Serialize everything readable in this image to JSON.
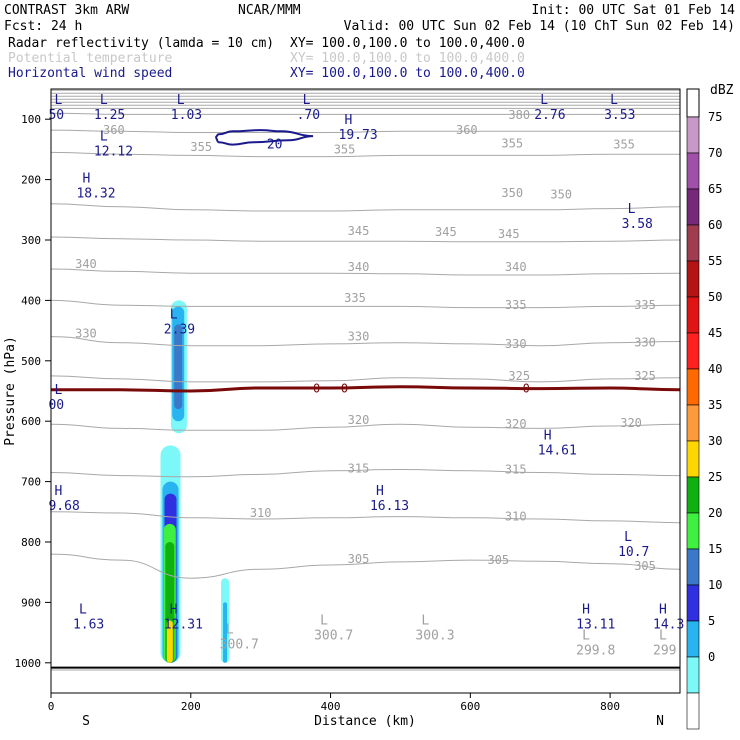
{
  "header": {
    "line1_left": "CONTRAST  3km ARW",
    "line1_center": "NCAR/MMM",
    "line1_right": "Init: 00 UTC Sat 01 Feb 14",
    "line2_left": "Fcst:   24 h",
    "line2_right": "Valid: 00 UTC Sun 02 Feb 14 (10 ChT Sun 02 Feb 14)",
    "fields": [
      {
        "name": "Radar reflectivity (lamda = 10 cm)",
        "xy": "XY= 100.0,100.0 to 100.0,400.0",
        "color": "#000000"
      },
      {
        "name": "Potential temperature",
        "xy": "XY= 100.0,100.0 to 100.0,400.0",
        "color": "#c8c8c8"
      },
      {
        "name": "Horizontal wind speed",
        "xy": "XY= 100.0,100.0 to 100.0,400.0",
        "color": "#1a1a8c"
      }
    ]
  },
  "chart_data": {
    "type": "cross-section",
    "xlabel": "Distance (km)",
    "ylabel": "Pressure (hPa)",
    "xlim": [
      0,
      900
    ],
    "ylim": [
      1050,
      50
    ],
    "x_ticks": [
      0,
      200,
      400,
      600,
      800
    ],
    "y_ticks": [
      100,
      200,
      300,
      400,
      500,
      600,
      700,
      800,
      900,
      1000
    ],
    "x_end_labels": {
      "left": "S",
      "right": "N"
    },
    "colorbar": {
      "unit": "dBZ",
      "levels": [
        {
          "label": "75",
          "color": "#c898c8"
        },
        {
          "label": "70",
          "color": "#a050a8"
        },
        {
          "label": "65",
          "color": "#782878"
        },
        {
          "label": "60",
          "color": "#a03c50"
        },
        {
          "label": "55",
          "color": "#b41414"
        },
        {
          "label": "50",
          "color": "#e01414"
        },
        {
          "label": "45",
          "color": "#ff2020"
        },
        {
          "label": "40",
          "color": "#ff6a00"
        },
        {
          "label": "35",
          "color": "#ff9a3c"
        },
        {
          "label": "30",
          "color": "#ffd700"
        },
        {
          "label": "25",
          "color": "#10b010"
        },
        {
          "label": "20",
          "color": "#40f040"
        },
        {
          "label": "15",
          "color": "#3c78c8"
        },
        {
          "label": "10",
          "color": "#3030e0"
        },
        {
          "label": "5",
          "color": "#28b4f0"
        },
        {
          "label": "0",
          "color": "#7cf8f8"
        },
        {
          "label": "",
          "color": "#ffffff"
        }
      ]
    },
    "isentropes": [
      {
        "theta": 300,
        "p": [
          1012,
          1012,
          1012,
          1012,
          1012,
          1012,
          1012,
          1012,
          1012,
          1012
        ]
      },
      {
        "theta": 305,
        "p": [
          820,
          830,
          860,
          845,
          838,
          833,
          830,
          832,
          836,
          845
        ]
      },
      {
        "theta": 310,
        "p": [
          750,
          752,
          760,
          762,
          760,
          758,
          760,
          762,
          765,
          768
        ]
      },
      {
        "theta": 315,
        "p": [
          685,
          690,
          692,
          688,
          682,
          680,
          682,
          685,
          688,
          690
        ]
      },
      {
        "theta": 320,
        "p": [
          605,
          612,
          615,
          615,
          610,
          605,
          610,
          612,
          608,
          605
        ]
      },
      {
        "theta": 325,
        "p": [
          525,
          530,
          535,
          535,
          533,
          528,
          530,
          535,
          530,
          528
        ]
      },
      {
        "theta": 330,
        "p": [
          460,
          470,
          475,
          475,
          472,
          470,
          472,
          475,
          470,
          468
        ]
      },
      {
        "theta": 335,
        "p": [
          400,
          408,
          410,
          410,
          410,
          410,
          412,
          412,
          410,
          408
        ]
      },
      {
        "theta": 340,
        "p": [
          348,
          352,
          355,
          355,
          355,
          356,
          358,
          358,
          356,
          355
        ]
      },
      {
        "theta": 345,
        "p": [
          295,
          298,
          300,
          302,
          302,
          302,
          303,
          303,
          302,
          300
        ]
      },
      {
        "theta": 350,
        "p": [
          240,
          245,
          250,
          252,
          252,
          250,
          250,
          250,
          248,
          245
        ]
      },
      {
        "theta": 355,
        "p": [
          155,
          158,
          160,
          162,
          162,
          160,
          160,
          160,
          158,
          158
        ]
      },
      {
        "theta": 360,
        "p": [
          118,
          120,
          122,
          122,
          122,
          120,
          120,
          120,
          120,
          120
        ]
      },
      {
        "theta": 380,
        "p": [
          90,
          92,
          92,
          92,
          92,
          92,
          92,
          92,
          92,
          92
        ]
      }
    ],
    "isentrope_x": [
      0,
      100,
      200,
      300,
      400,
      500,
      600,
      700,
      800,
      900
    ],
    "isentrope_labels": [
      {
        "text": "360",
        "x": 90,
        "p": 118
      },
      {
        "text": "355",
        "x": 215,
        "p": 146
      },
      {
        "text": "355",
        "x": 420,
        "p": 150
      },
      {
        "text": "360",
        "x": 595,
        "p": 118
      },
      {
        "text": "355",
        "x": 660,
        "p": 140
      },
      {
        "text": "355",
        "x": 820,
        "p": 142
      },
      {
        "text": "380",
        "x": 670,
        "p": 93
      },
      {
        "text": "350",
        "x": 660,
        "p": 222
      },
      {
        "text": "350",
        "x": 730,
        "p": 225
      },
      {
        "text": "345",
        "x": 440,
        "p": 285
      },
      {
        "text": "345",
        "x": 565,
        "p": 287
      },
      {
        "text": "345",
        "x": 655,
        "p": 290
      },
      {
        "text": "340",
        "x": 50,
        "p": 340
      },
      {
        "text": "340",
        "x": 440,
        "p": 345
      },
      {
        "text": "340",
        "x": 665,
        "p": 345
      },
      {
        "text": "335",
        "x": 435,
        "p": 396
      },
      {
        "text": "335",
        "x": 665,
        "p": 408
      },
      {
        "text": "335",
        "x": 850,
        "p": 408
      },
      {
        "text": "330",
        "x": 50,
        "p": 455
      },
      {
        "text": "330",
        "x": 440,
        "p": 460
      },
      {
        "text": "330",
        "x": 665,
        "p": 472
      },
      {
        "text": "330",
        "x": 850,
        "p": 470
      },
      {
        "text": "325",
        "x": 670,
        "p": 525
      },
      {
        "text": "325",
        "x": 850,
        "p": 525
      },
      {
        "text": "320",
        "x": 440,
        "p": 598
      },
      {
        "text": "320",
        "x": 665,
        "p": 605
      },
      {
        "text": "320",
        "x": 830,
        "p": 603
      },
      {
        "text": "315",
        "x": 440,
        "p": 678
      },
      {
        "text": "315",
        "x": 665,
        "p": 680
      },
      {
        "text": "310",
        "x": 300,
        "p": 752
      },
      {
        "text": "310",
        "x": 665,
        "p": 758
      },
      {
        "text": "305",
        "x": 440,
        "p": 828
      },
      {
        "text": "305",
        "x": 640,
        "p": 830
      },
      {
        "text": "305",
        "x": 850,
        "p": 840
      }
    ],
    "freezing_level": {
      "label": "0",
      "p": [
        548,
        548,
        550,
        545,
        545,
        543,
        545,
        546,
        545,
        548
      ]
    },
    "wind_contour": {
      "label": "20",
      "x": [
        240,
        260,
        300,
        330,
        375,
        340,
        290,
        260,
        240,
        235,
        240
      ],
      "p": [
        125,
        120,
        118,
        120,
        128,
        135,
        138,
        142,
        138,
        130,
        125
      ]
    },
    "extrema": [
      {
        "type": "L",
        "value": "50",
        "x": 5,
        "p": 75
      },
      {
        "type": "L",
        "value": "1.25",
        "x": 70,
        "p": 75
      },
      {
        "type": "L",
        "value": "1.03",
        "x": 180,
        "p": 75
      },
      {
        "type": "L",
        "value": ".70",
        "x": 360,
        "p": 75
      },
      {
        "type": "L",
        "value": "2.76",
        "x": 700,
        "p": 75
      },
      {
        "type": "L",
        "value": "3.53",
        "x": 800,
        "p": 75
      },
      {
        "type": "L",
        "value": "12.12",
        "x": 70,
        "p": 135
      },
      {
        "type": "H",
        "value": "19.73",
        "x": 420,
        "p": 108
      },
      {
        "type": "H",
        "value": "18.32",
        "x": 45,
        "p": 205
      },
      {
        "type": "L",
        "value": "3.58",
        "x": 825,
        "p": 255
      },
      {
        "type": "L",
        "value": "2.39",
        "x": 170,
        "p": 430
      },
      {
        "type": "L",
        "value": "00",
        "x": 5,
        "p": 555
      },
      {
        "type": "H",
        "value": "14.61",
        "x": 705,
        "p": 630
      },
      {
        "type": "H",
        "value": "9.68",
        "x": 5,
        "p": 722
      },
      {
        "type": "H",
        "value": "16.13",
        "x": 465,
        "p": 722
      },
      {
        "type": "L",
        "value": "10.7",
        "x": 820,
        "p": 798
      },
      {
        "type": "L",
        "value": "1.63",
        "x": 40,
        "p": 918
      },
      {
        "type": "H",
        "value": "12.31",
        "x": 170,
        "p": 918
      },
      {
        "type": "H",
        "value": "13.11",
        "x": 760,
        "p": 918
      },
      {
        "type": "H",
        "value": "14.3",
        "x": 870,
        "p": 918
      }
    ],
    "theta_extrema": [
      {
        "type": "L",
        "value": "300.7",
        "x": 250,
        "p": 975
      },
      {
        "type": "L",
        "value": "300.7",
        "x": 385,
        "p": 960
      },
      {
        "type": "L",
        "value": "300.3",
        "x": 530,
        "p": 960
      },
      {
        "type": "L",
        "value": "299.8",
        "x": 760,
        "p": 985
      },
      {
        "type": "L",
        "value": "299",
        "x": 870,
        "p": 985
      }
    ],
    "reflectivity_cells": [
      {
        "x": 183,
        "p_top": 400,
        "p_bot": 620,
        "w": 16,
        "color": "#7cf8f8"
      },
      {
        "x": 182,
        "p_top": 410,
        "p_bot": 600,
        "w": 12,
        "color": "#28b4f0"
      },
      {
        "x": 182,
        "p_top": 440,
        "p_bot": 580,
        "w": 8,
        "color": "#3c78c8"
      },
      {
        "x": 171,
        "p_top": 640,
        "p_bot": 1000,
        "w": 20,
        "color": "#7cf8f8"
      },
      {
        "x": 171,
        "p_top": 700,
        "p_bot": 1000,
        "w": 16,
        "color": "#28b4f0"
      },
      {
        "x": 171,
        "p_top": 720,
        "p_bot": 1000,
        "w": 12,
        "color": "#3030e0"
      },
      {
        "x": 170,
        "p_top": 770,
        "p_bot": 1000,
        "w": 12,
        "color": "#40f040"
      },
      {
        "x": 170,
        "p_top": 800,
        "p_bot": 1000,
        "w": 9,
        "color": "#10b010"
      },
      {
        "x": 170,
        "p_top": 930,
        "p_bot": 1000,
        "w": 6,
        "color": "#ffd700"
      },
      {
        "x": 249,
        "p_top": 860,
        "p_bot": 1000,
        "w": 8,
        "color": "#7cf8f8"
      },
      {
        "x": 249,
        "p_top": 900,
        "p_bot": 1000,
        "w": 4,
        "color": "#28b4f0"
      }
    ]
  }
}
